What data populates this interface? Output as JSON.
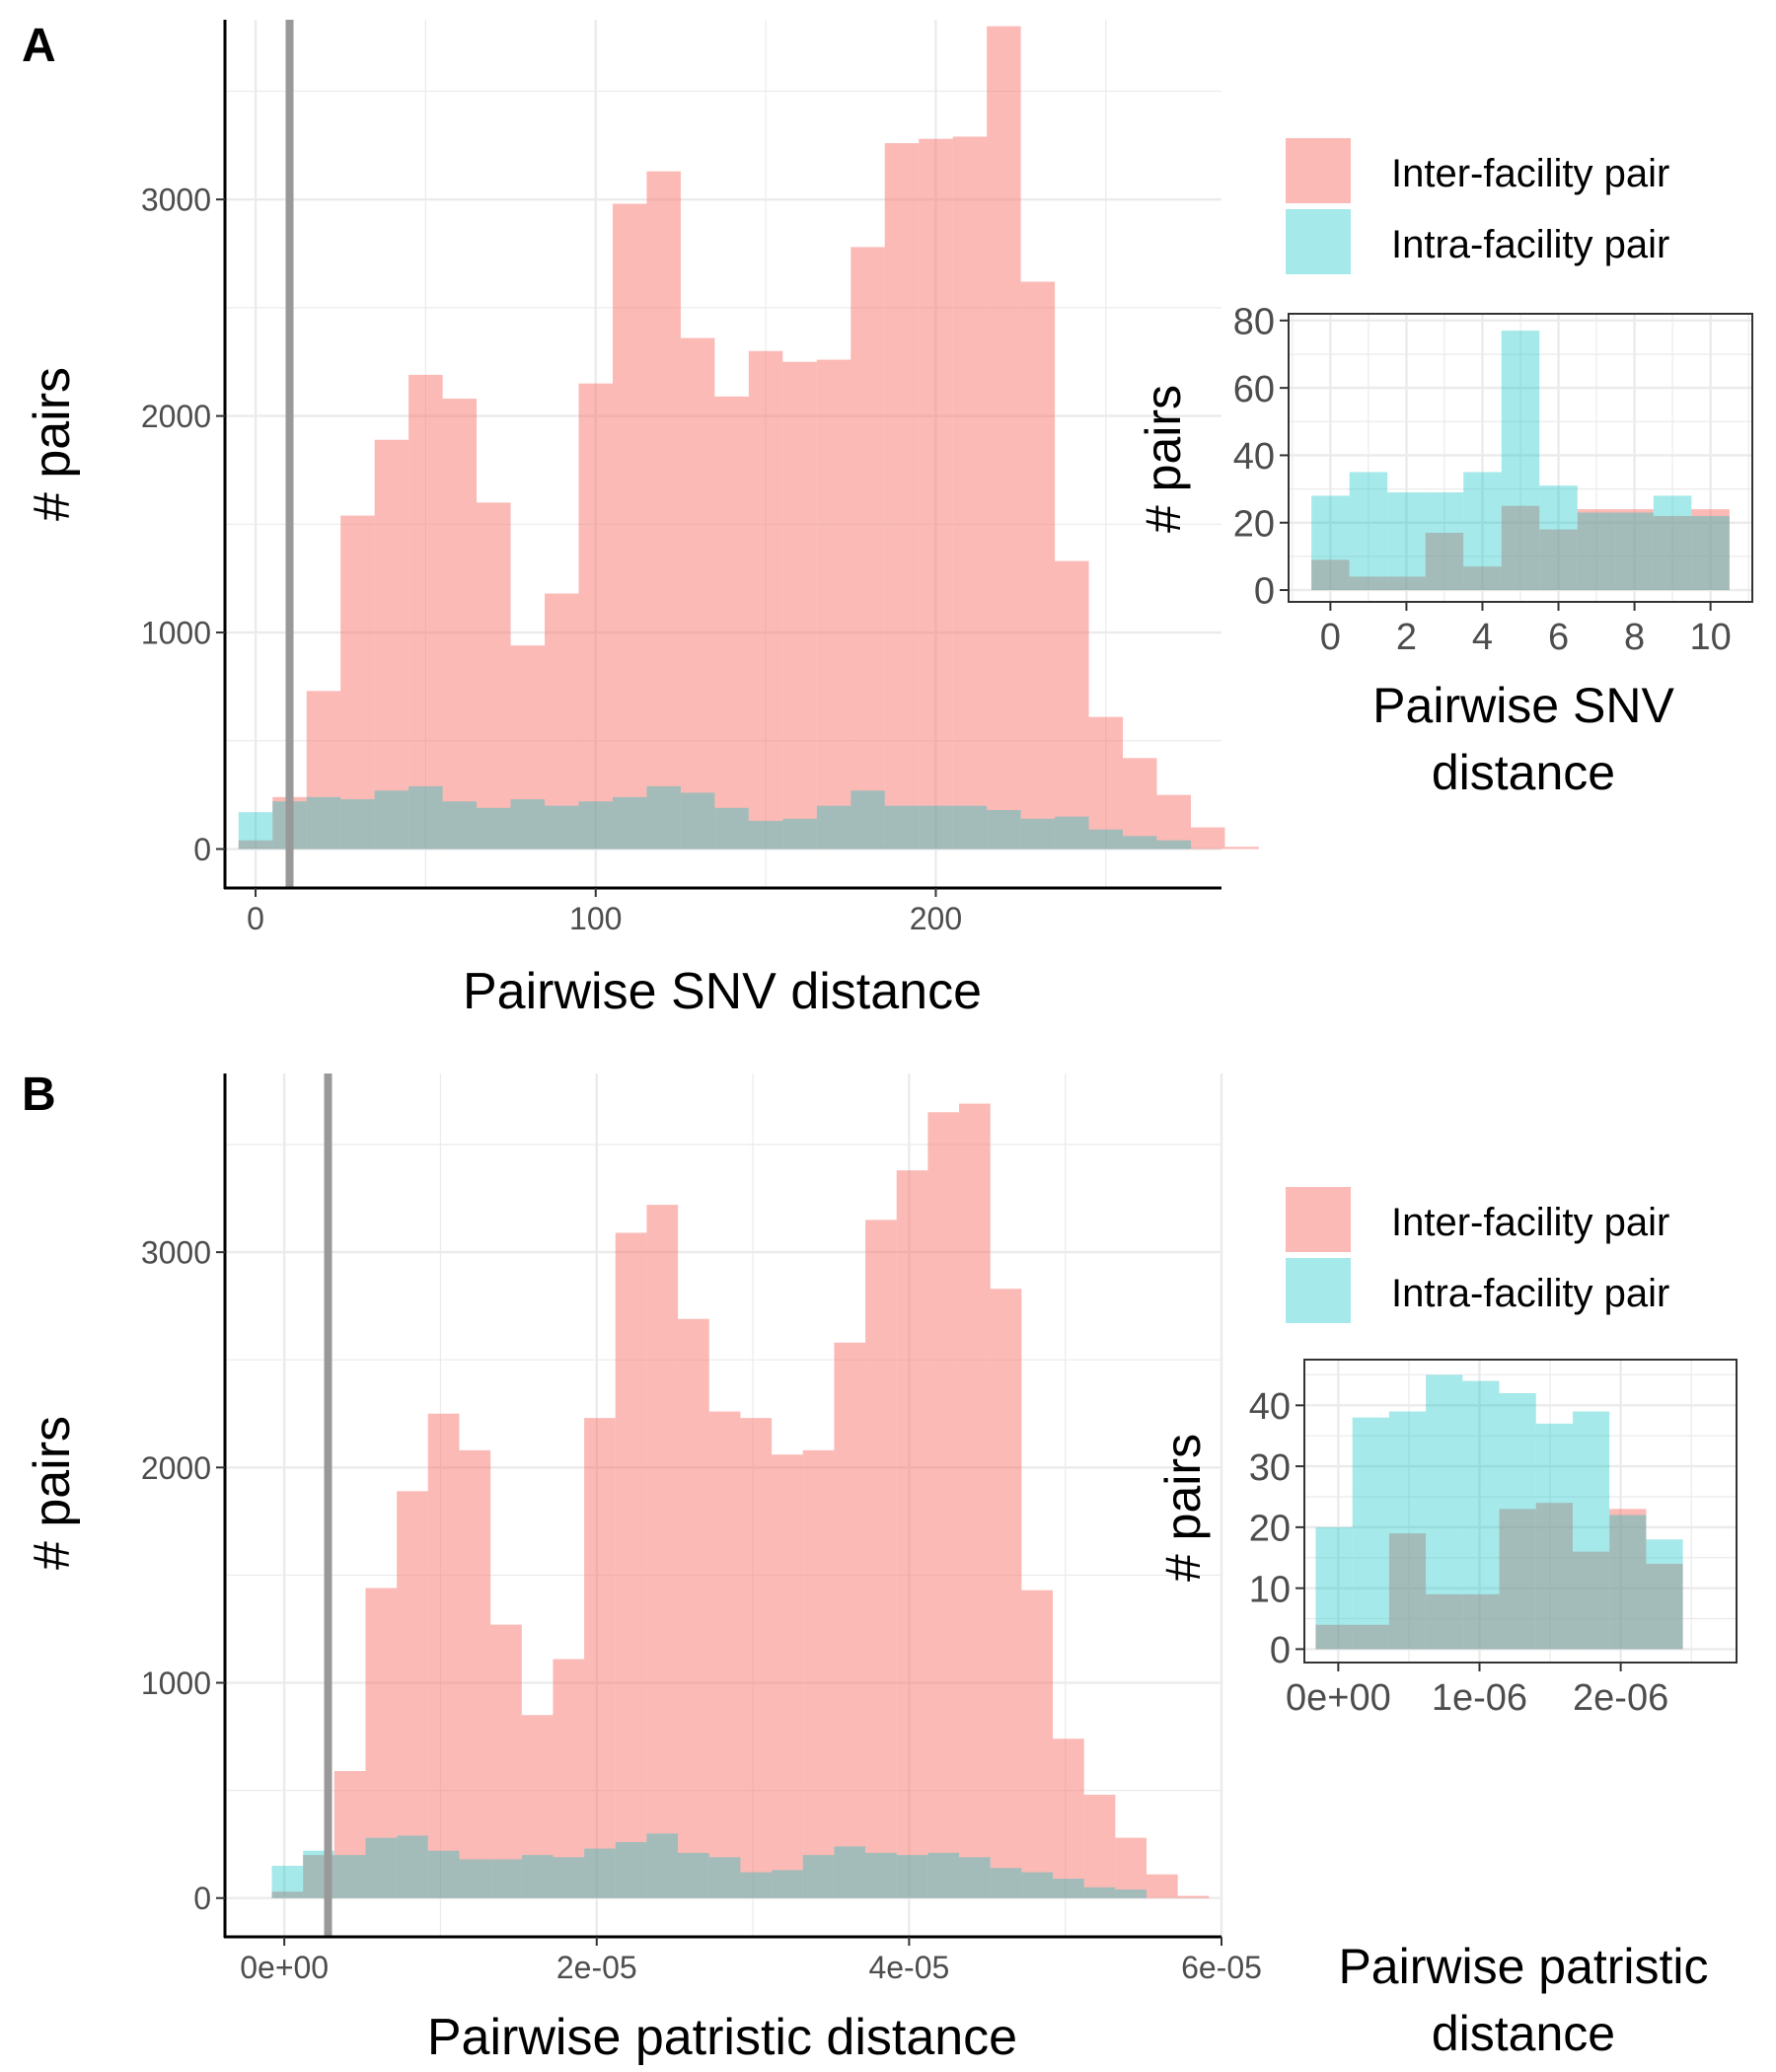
{
  "colors": {
    "inter": "#f8766d",
    "intra": "#00bfc4",
    "grid": "#ebebeb",
    "axis": "#000000",
    "threshold": "#999999"
  },
  "chart_data": [
    {
      "id": "A-main",
      "panel_label": "A",
      "type": "bar",
      "xlabel": "Pairwise SNV distance",
      "ylabel": "# pairs",
      "xlim": [
        -9,
        284
      ],
      "ylim": [
        -180,
        3830
      ],
      "xticks": [
        0,
        100,
        200
      ],
      "xtick_labels": [
        "0",
        "100",
        "200"
      ],
      "yticks": [
        0,
        1000,
        2000,
        3000
      ],
      "ytick_labels": [
        "0",
        "1000",
        "2000",
        "3000"
      ],
      "grid": true,
      "threshold_x": 10,
      "bin_width": 10,
      "legend": [
        "Inter-facility pair",
        "Intra-facility pair"
      ],
      "legend_position": "right",
      "series": [
        {
          "name": "Inter-facility pair",
          "x0": -5,
          "values": [
            40,
            240,
            730,
            1540,
            1890,
            2190,
            2080,
            1600,
            940,
            1180,
            2150,
            2980,
            3130,
            2360,
            2090,
            2300,
            2250,
            2260,
            2780,
            3260,
            3280,
            3290,
            3800,
            2620,
            1330,
            610,
            420,
            250,
            100,
            10
          ]
        },
        {
          "name": "Intra-facility pair",
          "x0": -5,
          "values": [
            170,
            220,
            240,
            230,
            270,
            290,
            220,
            190,
            230,
            200,
            220,
            240,
            290,
            260,
            190,
            130,
            140,
            200,
            270,
            200,
            200,
            200,
            180,
            140,
            150,
            90,
            60,
            40,
            0,
            0
          ]
        }
      ]
    },
    {
      "id": "A-inset",
      "type": "bar",
      "xlabel": "Pairwise SNV distance",
      "ylabel": "# pairs",
      "xlim": [
        -1.1,
        11.1
      ],
      "ylim": [
        -3.5,
        82
      ],
      "xticks": [
        0,
        2,
        4,
        6,
        8,
        10
      ],
      "xtick_labels": [
        "0",
        "2",
        "4",
        "6",
        "8",
        "10"
      ],
      "yticks": [
        0,
        20,
        40,
        60,
        80
      ],
      "ytick_labels": [
        "0",
        "20",
        "40",
        "60",
        "80"
      ],
      "grid": true,
      "bin_width": 1,
      "series": [
        {
          "name": "Inter-facility pair",
          "x0": -0.5,
          "values": [
            9,
            4,
            4,
            17,
            7,
            25,
            18,
            24,
            24,
            22,
            24
          ]
        },
        {
          "name": "Intra-facility pair",
          "x0": -0.5,
          "values": [
            28,
            35,
            29,
            29,
            35,
            77,
            31,
            23,
            23,
            28,
            22
          ]
        }
      ]
    },
    {
      "id": "B-main",
      "panel_label": "B",
      "type": "bar",
      "xlabel": "Pairwise patristic distance",
      "ylabel": "# pairs",
      "xlim": [
        -3.8e-06,
        6e-05
      ],
      "ylim": [
        -180,
        3830
      ],
      "xticks": [
        0,
        2e-05,
        4e-05,
        6e-05
      ],
      "xtick_labels": [
        "0e+00",
        "2e-05",
        "4e-05",
        "6e-05"
      ],
      "yticks": [
        0,
        1000,
        2000,
        3000
      ],
      "ytick_labels": [
        "0",
        "1000",
        "2000",
        "3000"
      ],
      "grid": true,
      "threshold_x": 2.8e-06,
      "bin_width": 2e-06,
      "legend": [
        "Inter-facility pair",
        "Intra-facility pair"
      ],
      "legend_position": "right",
      "series": [
        {
          "name": "Inter-facility pair",
          "x0": -8e-07,
          "values": [
            30,
            200,
            590,
            1440,
            1890,
            2250,
            2080,
            1270,
            850,
            1110,
            2230,
            3090,
            3220,
            2690,
            2260,
            2230,
            2060,
            2080,
            2580,
            3150,
            3380,
            3650,
            3690,
            2830,
            1430,
            740,
            480,
            280,
            110,
            10
          ]
        },
        {
          "name": "Intra-facility pair",
          "x0": -8e-07,
          "values": [
            150,
            220,
            200,
            280,
            290,
            220,
            180,
            180,
            200,
            190,
            230,
            260,
            300,
            210,
            190,
            120,
            130,
            200,
            240,
            210,
            200,
            210,
            190,
            140,
            120,
            90,
            50,
            40,
            0,
            0
          ]
        }
      ]
    },
    {
      "id": "B-inset",
      "type": "bar",
      "xlabel": "Pairwise patristic distance",
      "ylabel": "# pairs",
      "xlim": [
        -2.4e-07,
        2.82e-06
      ],
      "ylim": [
        -2.2,
        47.5
      ],
      "xticks": [
        0,
        1e-06,
        2e-06
      ],
      "xtick_labels": [
        "0e+00",
        "1e-06",
        "2e-06"
      ],
      "yticks": [
        0,
        10,
        20,
        30,
        40
      ],
      "ytick_labels": [
        "0",
        "10",
        "20",
        "30",
        "40"
      ],
      "grid": true,
      "bin_width": 2.6e-07,
      "series": [
        {
          "name": "Inter-facility pair",
          "x0": -1.6e-07,
          "values": [
            4,
            4,
            19,
            9,
            9,
            23,
            24,
            16,
            23,
            14
          ]
        },
        {
          "name": "Intra-facility pair",
          "x0": -1.6e-07,
          "values": [
            20,
            38,
            39,
            45,
            44,
            42,
            37,
            39,
            22,
            18
          ]
        }
      ]
    }
  ]
}
